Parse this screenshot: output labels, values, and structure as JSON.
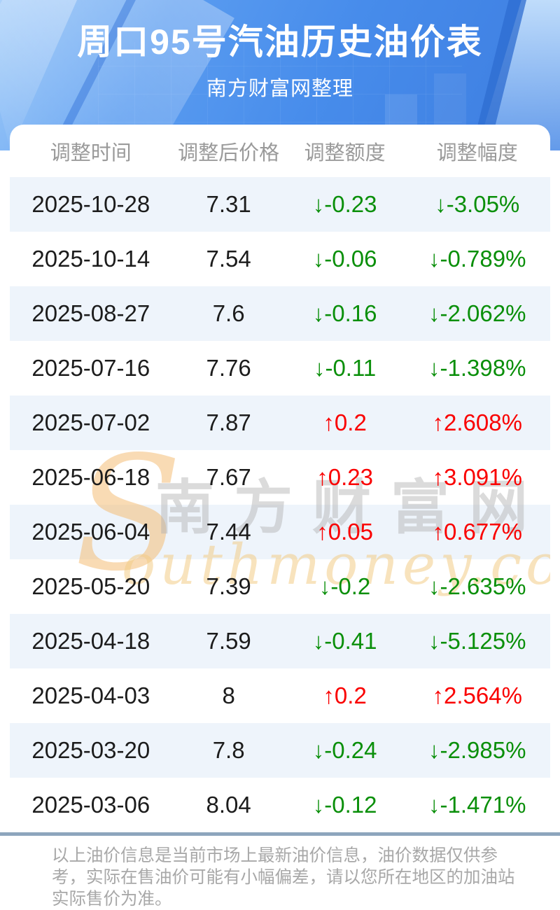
{
  "page": {
    "title": "周口95号汽油历史油价表",
    "subtitle": "南方财富网整理"
  },
  "table": {
    "columns": [
      "调整时间",
      "调整后价格",
      "调整额度",
      "调整幅度"
    ],
    "rows": [
      {
        "date": "2025-10-28",
        "price": "7.31",
        "change": "↓-0.23",
        "percent": "↓-3.05%",
        "direction": "down"
      },
      {
        "date": "2025-10-14",
        "price": "7.54",
        "change": "↓-0.06",
        "percent": "↓-0.789%",
        "direction": "down"
      },
      {
        "date": "2025-08-27",
        "price": "7.6",
        "change": "↓-0.16",
        "percent": "↓-2.062%",
        "direction": "down"
      },
      {
        "date": "2025-07-16",
        "price": "7.76",
        "change": "↓-0.11",
        "percent": "↓-1.398%",
        "direction": "down"
      },
      {
        "date": "2025-07-02",
        "price": "7.87",
        "change": "↑0.2",
        "percent": "↑2.608%",
        "direction": "up"
      },
      {
        "date": "2025-06-18",
        "price": "7.67",
        "change": "↑0.23",
        "percent": "↑3.091%",
        "direction": "up"
      },
      {
        "date": "2025-06-04",
        "price": "7.44",
        "change": "↑0.05",
        "percent": "↑0.677%",
        "direction": "up"
      },
      {
        "date": "2025-05-20",
        "price": "7.39",
        "change": "↓-0.2",
        "percent": "↓-2.635%",
        "direction": "down"
      },
      {
        "date": "2025-04-18",
        "price": "7.59",
        "change": "↓-0.41",
        "percent": "↓-5.125%",
        "direction": "down"
      },
      {
        "date": "2025-04-03",
        "price": "8",
        "change": "↑0.2",
        "percent": "↑2.564%",
        "direction": "up"
      },
      {
        "date": "2025-03-20",
        "price": "7.8",
        "change": "↓-0.24",
        "percent": "↓-2.985%",
        "direction": "down"
      },
      {
        "date": "2025-03-06",
        "price": "8.04",
        "change": "↓-0.12",
        "percent": "↓-1.471%",
        "direction": "down"
      }
    ]
  },
  "watermark": {
    "s": "S",
    "cn": "南方财富网",
    "en": "outhmoney.com"
  },
  "footer": {
    "disclaimer": "以上油价信息是当前市场上最新油价信息，油价数据仅供参考，实际在售油价可能有小幅偏差，请以您所在地区的加油站实际售价为准。"
  },
  "colors": {
    "accent_blue": "#4a90ea",
    "row_alt_blue": "#eef4fb",
    "up_red": "#fa0000",
    "down_green": "#0a8f0a",
    "divider_blue_gray": "#8da5bd",
    "column_header_gray": "#9a9a9a"
  }
}
